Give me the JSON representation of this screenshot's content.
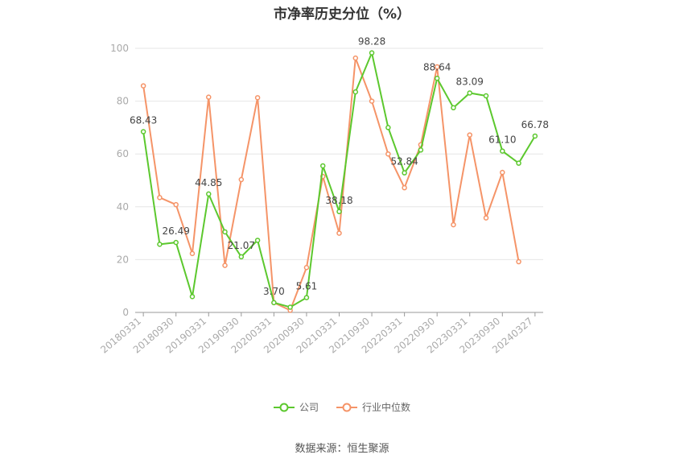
{
  "page": {
    "title": "市净率历史分位（%）",
    "source": "数据来源：恒生聚源"
  },
  "colors": {
    "company": "#5cc82e",
    "industry": "#f59468",
    "grid": "#e6e6e6",
    "axis": "#999999",
    "tick_text": "#aaaaaa",
    "label_text": "#444444"
  },
  "chart_data": {
    "type": "line",
    "ylim": [
      0,
      100
    ],
    "yticks": [
      0,
      20,
      40,
      60,
      80,
      100
    ],
    "x_tick_labels": [
      "20180331",
      "20180930",
      "20190331",
      "20190930",
      "20200331",
      "20200930",
      "20210331",
      "20210930",
      "20220331",
      "20220930",
      "20230331",
      "20230930",
      "20240327"
    ],
    "x_tick_positions": [
      0,
      2,
      4,
      6,
      8,
      10,
      12,
      14,
      16,
      18,
      20,
      22,
      24
    ],
    "legend_position": "bottom",
    "series": [
      {
        "name": "公司",
        "key": "company",
        "values": [
          68.43,
          25.8,
          26.49,
          6.0,
          44.85,
          30.5,
          21.07,
          27.3,
          3.7,
          2.0,
          5.61,
          55.5,
          38.18,
          83.5,
          98.28,
          70.0,
          52.84,
          61.5,
          88.64,
          77.5,
          83.09,
          82.0,
          61.1,
          56.5,
          66.78
        ],
        "labels": [
          "68.43",
          null,
          "26.49",
          null,
          "44.85",
          null,
          "21.07",
          null,
          "3.70",
          null,
          "5.61",
          null,
          "38.18",
          null,
          "98.28",
          null,
          "52.84",
          null,
          "88.64",
          null,
          "83.09",
          null,
          "61.10",
          null,
          "66.78"
        ]
      },
      {
        "name": "行业中位数",
        "key": "industry",
        "values": [
          85.8,
          43.5,
          40.8,
          22.3,
          81.5,
          17.8,
          50.3,
          81.3,
          3.7,
          0.8,
          17.0,
          51.5,
          30.0,
          96.3,
          80.0,
          60.0,
          47.2,
          63.5,
          93.0,
          33.2,
          67.2,
          35.8,
          53.0,
          19.2,
          null
        ]
      }
    ]
  }
}
